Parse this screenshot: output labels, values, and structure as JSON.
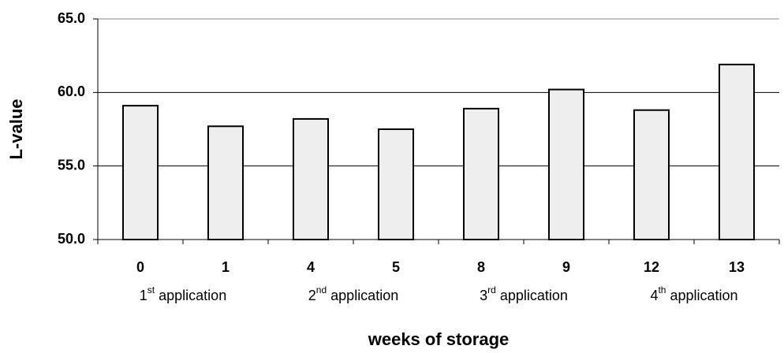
{
  "chart_data": {
    "type": "bar",
    "y_label": "L-value",
    "x_label": "weeks of storage",
    "categories": [
      "0",
      "1",
      "4",
      "5",
      "8",
      "9",
      "12",
      "13"
    ],
    "values": [
      59.1,
      57.7,
      58.2,
      57.5,
      58.9,
      60.2,
      58.8,
      61.9
    ],
    "color": "#eeeeee",
    "ylim": [
      50,
      65
    ],
    "yticks": [
      {
        "value": 50,
        "label": "50.0"
      },
      {
        "value": 55,
        "label": "55.0"
      },
      {
        "value": 60,
        "label": "60.0"
      },
      {
        "value": 65,
        "label": "65.0"
      }
    ],
    "grid": true,
    "groups": [
      {
        "number": "1",
        "suffix": "st",
        "text": "application"
      },
      {
        "number": "2",
        "suffix": "nd",
        "text": "application"
      },
      {
        "number": "3",
        "suffix": "rd",
        "text": "application"
      },
      {
        "number": "4",
        "suffix": "th",
        "text": "application"
      }
    ]
  }
}
